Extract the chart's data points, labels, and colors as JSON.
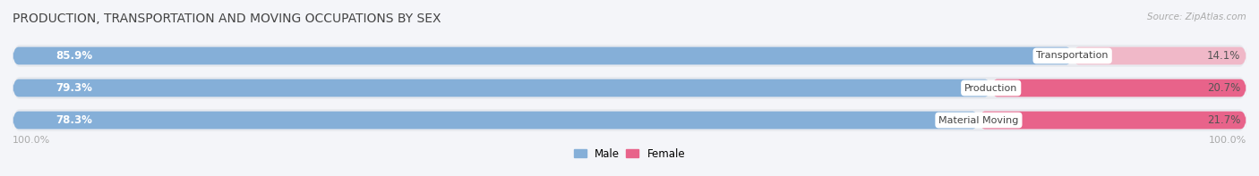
{
  "title": "PRODUCTION, TRANSPORTATION AND MOVING OCCUPATIONS BY SEX",
  "source": "Source: ZipAtlas.com",
  "categories": [
    "Transportation",
    "Production",
    "Material Moving"
  ],
  "male_values": [
    85.9,
    79.3,
    78.3
  ],
  "female_values": [
    14.1,
    20.7,
    21.7
  ],
  "male_color": "#85afd8",
  "female_colors": [
    "#f0b8c8",
    "#e8638a",
    "#e8638a"
  ],
  "row_bg_color": "#e8eaef",
  "fig_bg_color": "#f4f5f9",
  "title_color": "#444444",
  "source_color": "#aaaaaa",
  "axis_label_color": "#aaaaaa",
  "legend_male_color": "#85afd8",
  "legend_female_color": "#e8638a",
  "figsize": [
    14.06,
    1.97
  ],
  "dpi": 100
}
